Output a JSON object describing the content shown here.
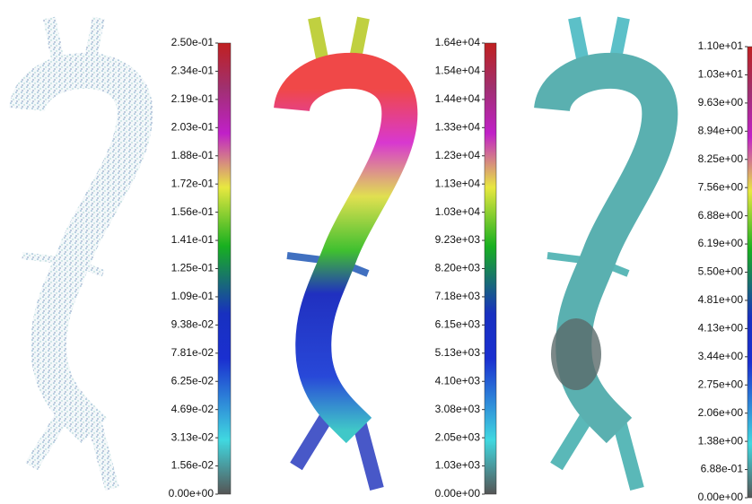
{
  "panels": [
    {
      "ticks": [
        "2.50e-01",
        "2.34e-01",
        "2.19e-01",
        "2.03e-01",
        "1.88e-01",
        "1.72e-01",
        "1.56e-01",
        "1.41e-01",
        "1.25e-01",
        "1.09e-01",
        "9.38e-02",
        "7.81e-02",
        "6.25e-02",
        "4.69e-02",
        "3.13e-02",
        "1.56e-02",
        "0.00e+00"
      ]
    },
    {
      "ticks": [
        "1.64e+04",
        "1.54e+04",
        "1.44e+04",
        "1.33e+04",
        "1.23e+04",
        "1.13e+04",
        "1.03e+04",
        "9.23e+03",
        "8.20e+03",
        "7.18e+03",
        "6.15e+03",
        "5.13e+03",
        "4.10e+03",
        "3.08e+03",
        "2.05e+03",
        "1.03e+03",
        "0.00e+00"
      ]
    },
    {
      "ticks": [
        "1.10e+01",
        "1.03e+01",
        "9.63e+00",
        "8.94e+00",
        "8.25e+00",
        "7.56e+00",
        "6.88e+00",
        "6.19e+00",
        "5.50e+00",
        "4.81e+00",
        "4.13e+00",
        "3.44e+00",
        "2.75e+00",
        "2.06e+00",
        "1.38e+00",
        "6.88e-01",
        "0.00e+00"
      ]
    }
  ]
}
